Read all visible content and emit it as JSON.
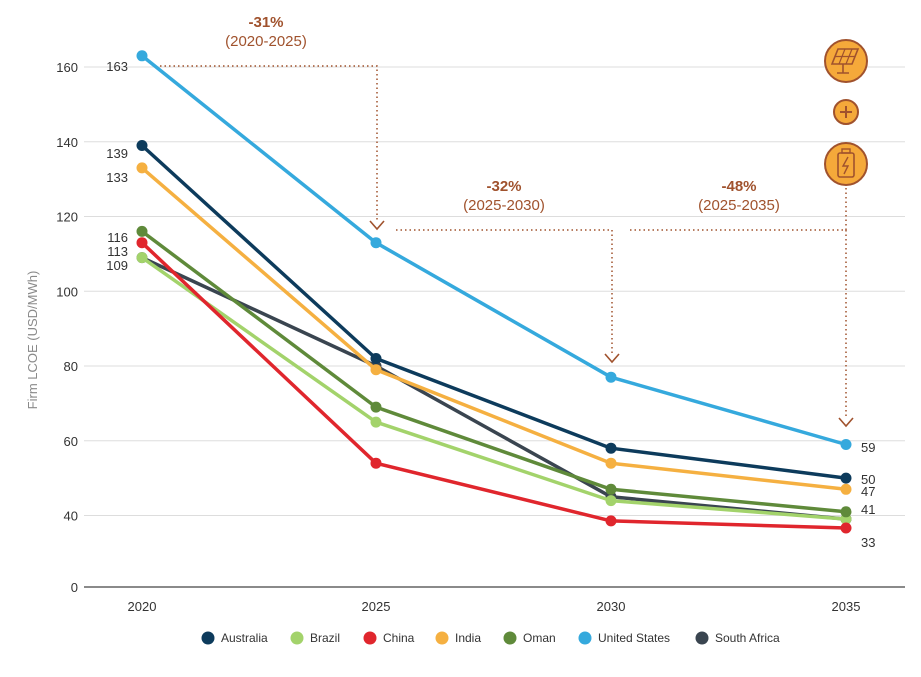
{
  "chart_data": {
    "type": "line",
    "title": "",
    "xlabel": "",
    "ylabel": "Firm LCOE (USD/MWh)",
    "x": [
      "2020",
      "2025",
      "2030",
      "2035"
    ],
    "ylim": [
      0,
      168
    ],
    "y_ticks": [
      0,
      40,
      60,
      80,
      100,
      120,
      140,
      160
    ],
    "y_axis_break": true,
    "grid": true,
    "legend_position": "bottom",
    "series": [
      {
        "name": "Australia",
        "color": "#0d3b5c",
        "values": [
          139,
          82,
          58,
          50
        ]
      },
      {
        "name": "Brazil",
        "color": "#a3d36b",
        "values": [
          109,
          65,
          44,
          38
        ]
      },
      {
        "name": "China",
        "color": "#e0262d",
        "values": [
          113,
          54,
          37,
          33
        ]
      },
      {
        "name": "India",
        "color": "#f5b041",
        "values": [
          133,
          79,
          54,
          47
        ]
      },
      {
        "name": "Oman",
        "color": "#5f8a3a",
        "values": [
          116,
          69,
          47,
          41
        ]
      },
      {
        "name": "United States",
        "color": "#35a9dd",
        "values": [
          163,
          113,
          77,
          59
        ]
      },
      {
        "name": "South Africa",
        "color": "#3a4550",
        "values": [
          109,
          80,
          45,
          38
        ]
      }
    ],
    "start_labels": [
      "163",
      "139",
      "133",
      "116",
      "113",
      "109"
    ],
    "end_labels": [
      "59",
      "50",
      "47",
      "41",
      "33"
    ],
    "annotations": [
      {
        "pct": "-31%",
        "range": "(2020-2025)"
      },
      {
        "pct": "-32%",
        "range": "(2025-2030)"
      },
      {
        "pct": "-48%",
        "range": "(2025-2035)"
      }
    ],
    "icons": [
      "solar-panel-icon",
      "plus-icon",
      "battery-icon"
    ],
    "annotation_color": "#a0522d",
    "icon_fill": "#f5a93a"
  }
}
